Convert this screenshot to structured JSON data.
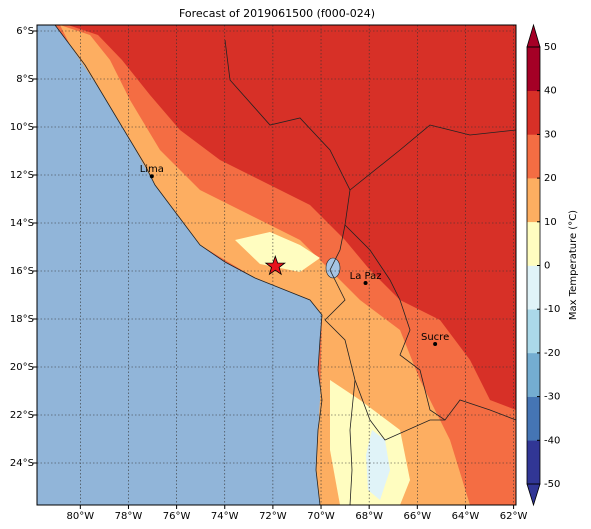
{
  "title": "Forecast of 2019061500 (f000-024)",
  "xlim": [
    -81.8,
    -61.9
  ],
  "ylim": [
    -25.75,
    -5.75
  ],
  "lon_ticks": [
    {
      "value": -80,
      "label": "80°W"
    },
    {
      "value": -78,
      "label": "78°W"
    },
    {
      "value": -76,
      "label": "76°W"
    },
    {
      "value": -74,
      "label": "74°W"
    },
    {
      "value": -72,
      "label": "72°W"
    },
    {
      "value": -70,
      "label": "70°W"
    },
    {
      "value": -68,
      "label": "68°W"
    },
    {
      "value": -66,
      "label": "66°W"
    },
    {
      "value": -64,
      "label": "64°W"
    },
    {
      "value": -62,
      "label": "62°W"
    }
  ],
  "lat_ticks": [
    {
      "value": -6,
      "label": "6°S"
    },
    {
      "value": -8,
      "label": "8°S"
    },
    {
      "value": -10,
      "label": "10°S"
    },
    {
      "value": -12,
      "label": "12°S"
    },
    {
      "value": -14,
      "label": "14°S"
    },
    {
      "value": -16,
      "label": "16°S"
    },
    {
      "value": -18,
      "label": "18°S"
    },
    {
      "value": -20,
      "label": "20°S"
    },
    {
      "value": -22,
      "label": "22°S"
    },
    {
      "value": -24,
      "label": "24°S"
    }
  ],
  "cities": [
    {
      "name": "Lima",
      "lon": -77.03,
      "lat": -12.05
    },
    {
      "name": "La Paz",
      "lon": -68.15,
      "lat": -16.5
    },
    {
      "name": "Sucre",
      "lon": -65.26,
      "lat": -19.04
    }
  ],
  "star": {
    "lon": -71.9,
    "lat": -15.8
  },
  "colorbar": {
    "label": "Max Temperature (°C)",
    "lim": [
      -50,
      50
    ],
    "ticks": [
      -50,
      -40,
      -30,
      -20,
      -10,
      0,
      10,
      20,
      30,
      40,
      50
    ],
    "colors": [
      "#313695",
      "#4575b4",
      "#74add1",
      "#abd9e9",
      "#e0f3f8",
      "#fffdc0",
      "#fdae61",
      "#f46d43",
      "#d73027",
      "#a50026"
    ]
  }
}
